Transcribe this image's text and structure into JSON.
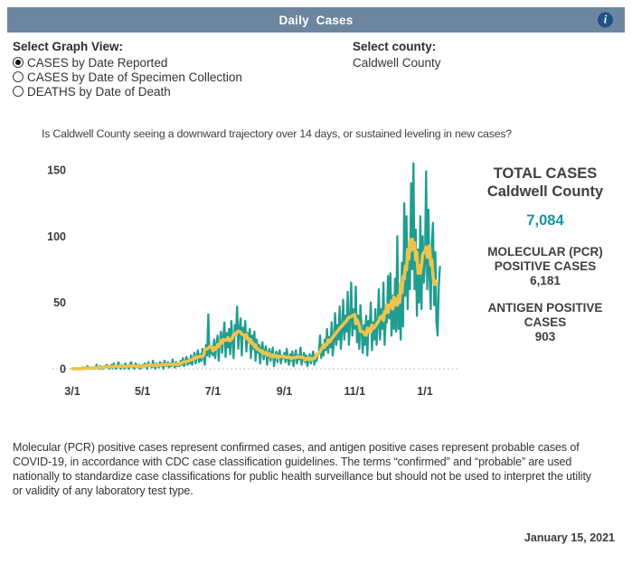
{
  "header": {
    "title": "Daily  Cases",
    "info_icon_glyph": "i"
  },
  "controls": {
    "graph_view_label": "Select Graph View:",
    "options": [
      {
        "label": "CASES by Date Reported",
        "selected": true
      },
      {
        "label": "CASES by Date of Specimen Collection",
        "selected": false
      },
      {
        "label": "DEATHS by Date of Death",
        "selected": false
      }
    ],
    "county_label": "Select county:",
    "county_value": "Caldwell County"
  },
  "question": "Is Caldwell County seeing a downward trajectory over 14 days, or sustained leveling in new cases?",
  "stats": {
    "total_title": [
      "TOTAL CASES",
      "Caldwell County"
    ],
    "total_value": "7,084",
    "pcr_label": [
      "MOLECULAR (PCR)",
      "POSITIVE CASES"
    ],
    "pcr_value": "6,181",
    "antigen_label": [
      "ANTIGEN POSITIVE",
      "CASES"
    ],
    "antigen_value": "903"
  },
  "footer": {
    "disclaimer": "Molecular (PCR) positive cases represent confirmed cases, and antigen positive cases represent probable cases of COVID-19, in accordance with CDC case classification guidelines. The terms “confirmed” and “probable” are used nationally to standardize case classifications for public health surveillance but should not be used to interpret the utility or validity of any laboratory test type.",
    "date": "January 15, 2021"
  },
  "colors": {
    "header_bar": "#6c86a0",
    "info_circle": "#1f5288",
    "daily_line": "#1f9d8f",
    "avg_line": "#ecc44d",
    "total_value_text": "#1795a0",
    "zero_line": "#bfbfbf"
  },
  "chart_data": {
    "type": "line",
    "title": "Daily Cases, Caldwell County",
    "x_start_date": "3/1",
    "x_end_date": "1/14",
    "x_tick_labels": [
      "3/1",
      "5/1",
      "7/1",
      "9/1",
      "11/1",
      "1/1"
    ],
    "x_tick_day_index": [
      0,
      61,
      122,
      184,
      245,
      306
    ],
    "y_tick_labels": [
      "0",
      "50",
      "100",
      "150"
    ],
    "y_tick_values": [
      0,
      50,
      100,
      150
    ],
    "ylim": [
      0,
      155
    ],
    "grid": "dotted zero baseline only",
    "series": [
      {
        "name": "daily-new-cases",
        "color": "#1f9d8f",
        "values": [
          0,
          0,
          0,
          0,
          0,
          0,
          0,
          0,
          0,
          1,
          0,
          0,
          0,
          2,
          0,
          1,
          0,
          0,
          1,
          0,
          0,
          3,
          1,
          0,
          2,
          0,
          1,
          0,
          2,
          1,
          3,
          2,
          0,
          1,
          3,
          0,
          4,
          1,
          0,
          2,
          5,
          1,
          0,
          3,
          2,
          0,
          4,
          1,
          2,
          0,
          3,
          5,
          1,
          2,
          0,
          4,
          2,
          1,
          3,
          0,
          2,
          3,
          1,
          4,
          2,
          0,
          5,
          2,
          3,
          1,
          6,
          2,
          0,
          4,
          3,
          1,
          5,
          2,
          4,
          0,
          6,
          3,
          2,
          5,
          1,
          4,
          2,
          7,
          3,
          1,
          5,
          2,
          4,
          2,
          6,
          3,
          8,
          2,
          5,
          9,
          3,
          7,
          4,
          10,
          3,
          8,
          12,
          4,
          9,
          14,
          5,
          11,
          6,
          15,
          8,
          3,
          18,
          10,
          41,
          9,
          16,
          12,
          10,
          22,
          8,
          18,
          25,
          6,
          20,
          28,
          12,
          24,
          35,
          9,
          27,
          16,
          30,
          11,
          36,
          21,
          8,
          33,
          26,
          47,
          15,
          29,
          38,
          10,
          31,
          24,
          36,
          13,
          27,
          20,
          30,
          8,
          25,
          15,
          28,
          6,
          22,
          12,
          18,
          4,
          15,
          20,
          7,
          13,
          17,
          3,
          11,
          15,
          6,
          12,
          16,
          2,
          9,
          13,
          5,
          11,
          14,
          4,
          10,
          8,
          12,
          5,
          15,
          8,
          3,
          11,
          6,
          13,
          2,
          9,
          14,
          4,
          10,
          7,
          16,
          3,
          8,
          12,
          5,
          10,
          2,
          7,
          11,
          4,
          9,
          13,
          3,
          8,
          6,
          10,
          12,
          25,
          8,
          18,
          10,
          22,
          14,
          30,
          12,
          24,
          16,
          35,
          10,
          20,
          42,
          18,
          33,
          22,
          47,
          15,
          28,
          52,
          22,
          40,
          28,
          58,
          18,
          35,
          65,
          25,
          45,
          30,
          62,
          20,
          40,
          15,
          48,
          30,
          12,
          33,
          18,
          40,
          10,
          36,
          28,
          50,
          14,
          35,
          22,
          45,
          18,
          33,
          60,
          22,
          45,
          30,
          65,
          18,
          40,
          35,
          70,
          38,
          72,
          25,
          55,
          30,
          68,
          28,
          100,
          30,
          58,
          22,
          80,
          32,
          125,
          55,
          115,
          45,
          90,
          60,
          140,
          75,
          155,
          60,
          105,
          40,
          90,
          50,
          115,
          45,
          100,
          65,
          80,
          149,
          60,
          120,
          70,
          45,
          95,
          110,
          48,
          88,
          35,
          25,
          62,
          77
        ]
      },
      {
        "name": "7-day-moving-average",
        "color": "#ecc44d",
        "derived": "centered 7-day moving average of daily-new-cases"
      }
    ]
  }
}
